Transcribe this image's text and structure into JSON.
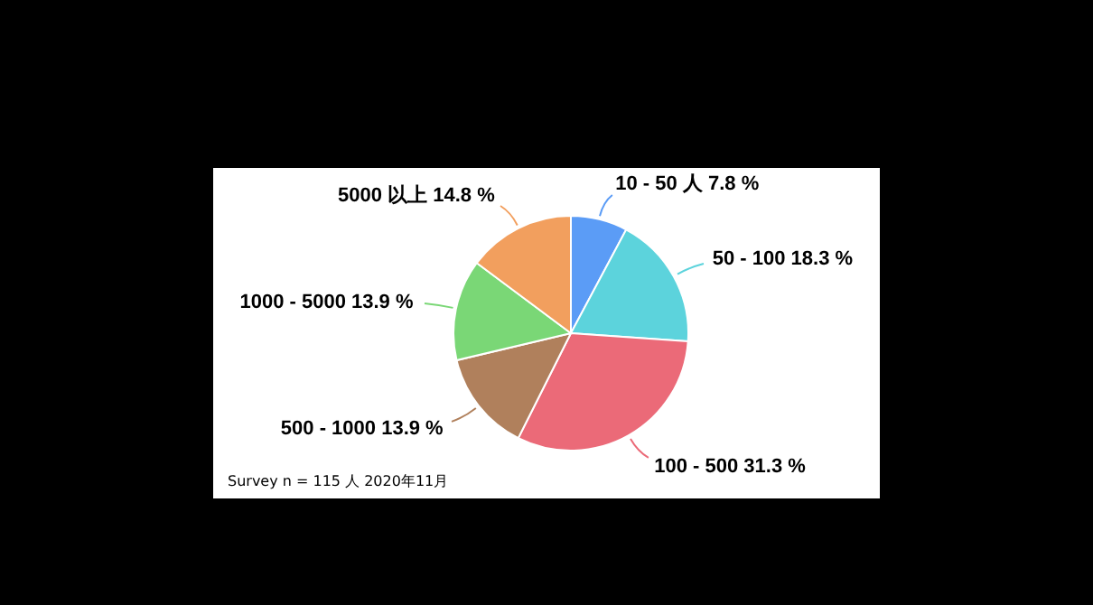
{
  "chart_data": {
    "type": "pie",
    "categories": [
      "10 - 50 人",
      "50 - 100",
      "100 - 500",
      "500 - 1000",
      "1000 - 5000",
      "5000 以上"
    ],
    "values": [
      7.8,
      18.3,
      31.3,
      13.9,
      13.9,
      14.8
    ],
    "colors": [
      "#5b9cf6",
      "#5cd3dc",
      "#eb6a78",
      "#b0805c",
      "#7ad776",
      "#f29f5e"
    ],
    "value_labels": [
      "7.8 %",
      "18.3 %",
      "31.3 %",
      "13.9 %",
      "13.9 %",
      "14.8 %"
    ],
    "legend": false,
    "annotations": [
      "Survey n = 115 人  2020年11月"
    ]
  }
}
